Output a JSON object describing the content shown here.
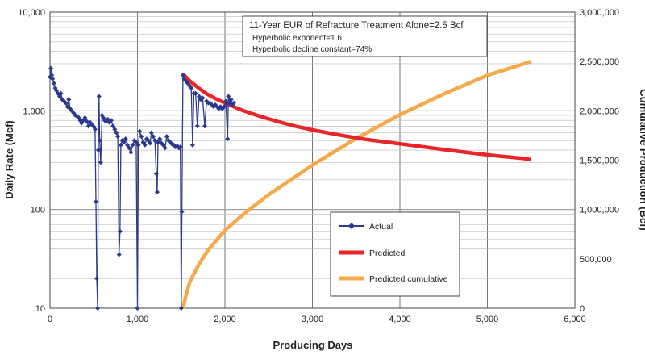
{
  "chart_data": {
    "type": "line",
    "xlabel": "Producing Days",
    "ylabel": "Daily Rate (Mcf)",
    "y2label": "Cumulative Production (Bcf)",
    "xlim": [
      0,
      6000
    ],
    "ylim": [
      10,
      10000
    ],
    "y_scale": "log",
    "y2lim": [
      0,
      3000000
    ],
    "grid": true,
    "legend_position": "bottom-center",
    "x_ticks": [
      "0",
      "1,000",
      "2,000",
      "3,000",
      "4,000",
      "5,000",
      "6,000"
    ],
    "y_ticks": [
      "10",
      "100",
      "1,000",
      "10,000"
    ],
    "y2_ticks": [
      "0",
      "500,000",
      "1,000,000",
      "1,500,000",
      "2,000,000",
      "2,500,000",
      "3,000,000"
    ],
    "annotation": {
      "title": "11-Year EUR of Refracture Treatment Alone=2.5 Bcf",
      "line1": "Hyperbolic exponent=1.6",
      "line2": "Hyperbolic decline constant=74%"
    },
    "colors": {
      "actual": "#2b3a8c",
      "predicted": "#e8262a",
      "cumulative": "#f4a94a"
    },
    "series": [
      {
        "name": "Actual",
        "axis": "left",
        "marker": "diamond",
        "points": [
          [
            0,
            2200
          ],
          [
            10,
            2700
          ],
          [
            20,
            2300
          ],
          [
            30,
            2100
          ],
          [
            45,
            1900
          ],
          [
            60,
            1700
          ],
          [
            75,
            1600
          ],
          [
            90,
            1500
          ],
          [
            110,
            1400
          ],
          [
            125,
            1500
          ],
          [
            140,
            1300
          ],
          [
            160,
            1250
          ],
          [
            180,
            1200
          ],
          [
            200,
            1100
          ],
          [
            215,
            1300
          ],
          [
            230,
            1050
          ],
          [
            250,
            1000
          ],
          [
            270,
            950
          ],
          [
            290,
            900
          ],
          [
            310,
            880
          ],
          [
            330,
            850
          ],
          [
            345,
            800
          ],
          [
            360,
            750
          ],
          [
            380,
            800
          ],
          [
            400,
            850
          ],
          [
            420,
            780
          ],
          [
            440,
            700
          ],
          [
            460,
            760
          ],
          [
            480,
            720
          ],
          [
            500,
            690
          ],
          [
            515,
            650
          ],
          [
            525,
            120
          ],
          [
            535,
            20
          ],
          [
            545,
            10
          ],
          [
            552,
            400
          ],
          [
            560,
            1400
          ],
          [
            568,
            500
          ],
          [
            580,
            300
          ],
          [
            595,
            900
          ],
          [
            610,
            850
          ],
          [
            625,
            800
          ],
          [
            640,
            780
          ],
          [
            660,
            820
          ],
          [
            680,
            760
          ],
          [
            700,
            800
          ],
          [
            720,
            700
          ],
          [
            740,
            650
          ],
          [
            760,
            600
          ],
          [
            775,
            550
          ],
          [
            790,
            35
          ],
          [
            800,
            60
          ],
          [
            810,
            450
          ],
          [
            825,
            500
          ],
          [
            845,
            480
          ],
          [
            865,
            520
          ],
          [
            885,
            450
          ],
          [
            905,
            420
          ],
          [
            925,
            380
          ],
          [
            945,
            450
          ],
          [
            965,
            500
          ],
          [
            985,
            480
          ],
          [
            1000,
            10
          ],
          [
            1010,
            450
          ],
          [
            1025,
            620
          ],
          [
            1045,
            550
          ],
          [
            1065,
            480
          ],
          [
            1085,
            450
          ],
          [
            1105,
            520
          ],
          [
            1125,
            500
          ],
          [
            1145,
            470
          ],
          [
            1160,
            600
          ],
          [
            1180,
            550
          ],
          [
            1200,
            500
          ],
          [
            1215,
            230
          ],
          [
            1225,
            150
          ],
          [
            1235,
            480
          ],
          [
            1255,
            520
          ],
          [
            1275,
            470
          ],
          [
            1295,
            450
          ],
          [
            1315,
            420
          ],
          [
            1335,
            550
          ],
          [
            1355,
            500
          ],
          [
            1375,
            480
          ],
          [
            1395,
            460
          ],
          [
            1415,
            450
          ],
          [
            1435,
            430
          ],
          [
            1455,
            440
          ],
          [
            1475,
            420
          ],
          [
            1490,
            430
          ],
          [
            1500,
            10
          ],
          [
            1508,
            95
          ],
          [
            1520,
            2300
          ],
          [
            1535,
            2100
          ],
          [
            1555,
            2000
          ],
          [
            1575,
            1900
          ],
          [
            1595,
            1800
          ],
          [
            1615,
            1700
          ],
          [
            1630,
            450
          ],
          [
            1645,
            1500
          ],
          [
            1665,
            1500
          ],
          [
            1685,
            700
          ],
          [
            1705,
            1400
          ],
          [
            1725,
            1300
          ],
          [
            1745,
            1350
          ],
          [
            1770,
            700
          ],
          [
            1790,
            1250
          ],
          [
            1810,
            1200
          ],
          [
            1830,
            1200
          ],
          [
            1850,
            1150
          ],
          [
            1870,
            1100
          ],
          [
            1890,
            1150
          ],
          [
            1910,
            1100
          ],
          [
            1930,
            1050
          ],
          [
            1950,
            1100
          ],
          [
            1970,
            1050
          ],
          [
            1990,
            1100
          ],
          [
            2010,
            1250
          ],
          [
            2030,
            520
          ],
          [
            2040,
            1400
          ],
          [
            2055,
            1200
          ],
          [
            2070,
            1300
          ],
          [
            2085,
            1150
          ],
          [
            2100,
            1200
          ]
        ]
      },
      {
        "name": "Predicted",
        "axis": "left",
        "points": [
          [
            1520,
            2350
          ],
          [
            1600,
            2000
          ],
          [
            1700,
            1700
          ],
          [
            1800,
            1470
          ],
          [
            1900,
            1320
          ],
          [
            2000,
            1200
          ],
          [
            2200,
            1010
          ],
          [
            2400,
            880
          ],
          [
            2600,
            780
          ],
          [
            2800,
            700
          ],
          [
            3000,
            640
          ],
          [
            3300,
            570
          ],
          [
            3600,
            515
          ],
          [
            3900,
            475
          ],
          [
            4200,
            440
          ],
          [
            4500,
            405
          ],
          [
            4800,
            375
          ],
          [
            5100,
            350
          ],
          [
            5400,
            330
          ],
          [
            5500,
            320
          ]
        ]
      },
      {
        "name": "Predicted cumulative",
        "axis": "right",
        "points": [
          [
            1520,
            0
          ],
          [
            1560,
            150000
          ],
          [
            1600,
            270000
          ],
          [
            1700,
            440000
          ],
          [
            1800,
            580000
          ],
          [
            2000,
            790000
          ],
          [
            2250,
            980000
          ],
          [
            2500,
            1150000
          ],
          [
            3000,
            1450000
          ],
          [
            3500,
            1720000
          ],
          [
            4000,
            1960000
          ],
          [
            4500,
            2170000
          ],
          [
            5000,
            2360000
          ],
          [
            5500,
            2500000
          ]
        ]
      }
    ]
  }
}
